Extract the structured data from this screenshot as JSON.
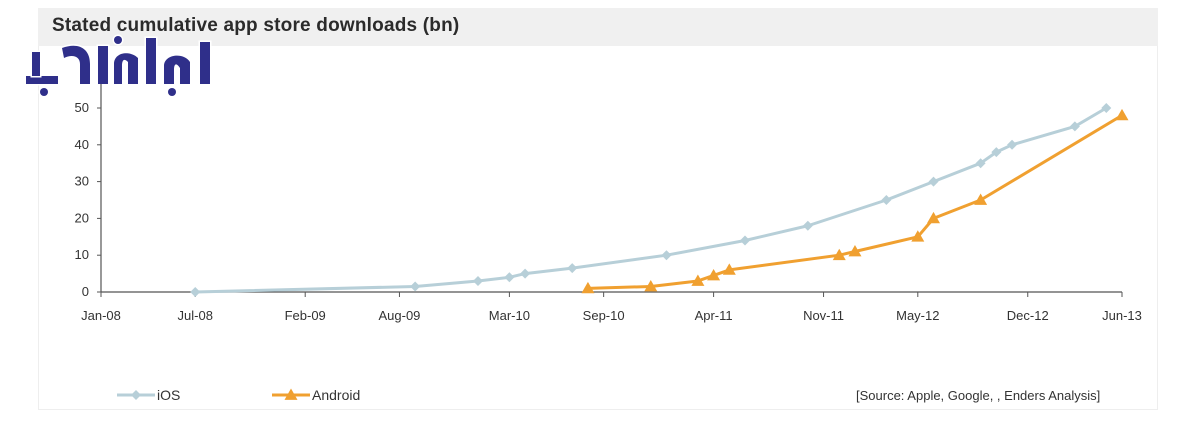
{
  "chart_data": {
    "type": "line",
    "title": "Stated cumulative app store downloads (bn)",
    "source": "[Source: Apple, Google, , Enders Analysis]",
    "x_axis": {
      "type": "date",
      "range": [
        "2008-01",
        "2013-06"
      ],
      "tick_labels": [
        "Jan-08",
        "Jul-08",
        "Feb-09",
        "Aug-09",
        "Mar-10",
        "Sep-10",
        "Apr-11",
        "Nov-11",
        "May-12",
        "Dec-12",
        "Jun-13"
      ],
      "tick_dates": [
        "2008-01",
        "2008-07",
        "2009-02",
        "2009-08",
        "2010-03",
        "2010-09",
        "2011-04",
        "2011-11",
        "2012-05",
        "2012-12",
        "2013-06"
      ]
    },
    "y_axis": {
      "range": [
        0,
        50
      ],
      "ticks": [
        0,
        10,
        20,
        30,
        40,
        50
      ]
    },
    "grid": false,
    "legend_position": "bottom-left",
    "series": [
      {
        "name": "iOS",
        "color": "#b7cfd8",
        "marker": "diamond",
        "points": [
          {
            "x": "2008-07",
            "y": 0
          },
          {
            "x": "2009-09",
            "y": 1.5
          },
          {
            "x": "2010-01",
            "y": 3
          },
          {
            "x": "2010-03",
            "y": 4
          },
          {
            "x": "2010-04",
            "y": 5
          },
          {
            "x": "2010-07",
            "y": 6.5
          },
          {
            "x": "2011-01",
            "y": 10
          },
          {
            "x": "2011-06",
            "y": 14
          },
          {
            "x": "2011-10",
            "y": 18
          },
          {
            "x": "2012-03",
            "y": 25
          },
          {
            "x": "2012-06",
            "y": 30
          },
          {
            "x": "2012-09",
            "y": 35
          },
          {
            "x": "2012-10",
            "y": 38
          },
          {
            "x": "2012-11",
            "y": 40
          },
          {
            "x": "2013-03",
            "y": 45
          },
          {
            "x": "2013-05",
            "y": 50
          }
        ]
      },
      {
        "name": "Android",
        "color": "#f0a030",
        "marker": "triangle",
        "points": [
          {
            "x": "2010-08",
            "y": 1
          },
          {
            "x": "2010-12",
            "y": 1.5
          },
          {
            "x": "2011-03",
            "y": 3
          },
          {
            "x": "2011-04",
            "y": 4.5
          },
          {
            "x": "2011-05",
            "y": 6
          },
          {
            "x": "2011-12",
            "y": 10
          },
          {
            "x": "2012-01",
            "y": 11
          },
          {
            "x": "2012-05",
            "y": 15
          },
          {
            "x": "2012-06",
            "y": 20
          },
          {
            "x": "2012-09",
            "y": 25
          },
          {
            "x": "2013-06",
            "y": 48
          }
        ]
      }
    ]
  }
}
